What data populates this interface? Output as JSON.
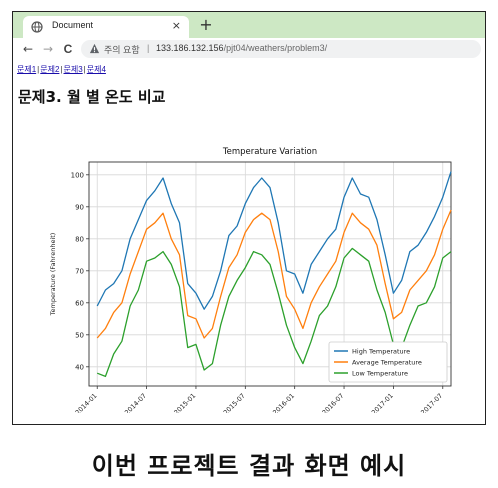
{
  "browser": {
    "tab_title": "Document",
    "tab_close": "×",
    "new_tab": "+",
    "back": "←",
    "forward": "→",
    "reload": "C",
    "security_label": "주의 요함",
    "separator": "|",
    "url_host": "133.186.132.156",
    "url_path": "/pjt04/weathers/problem3/",
    "tabstrip_color": "#cde8c4"
  },
  "page": {
    "links": [
      "문제1",
      "문제2",
      "문제3",
      "문제4"
    ],
    "link_separator": "|",
    "heading": "문제3. 월 별 온도 비교"
  },
  "caption": "이번 프로젝트 결과 화면 예시",
  "chart_data": {
    "type": "line",
    "title": "Temperature Variation",
    "xlabel": "",
    "ylabel": "Temperature (Fahrenheit)",
    "x_start": "2014-01",
    "x_step": "1 month",
    "xlim": [
      "2013-12",
      "2017-08"
    ],
    "ylim": [
      34,
      104
    ],
    "y_ticks": [
      40,
      50,
      60,
      70,
      80,
      90,
      100
    ],
    "x_ticks": [
      "2014-01",
      "2014-07",
      "2015-01",
      "2015-07",
      "2016-01",
      "2016-07",
      "2017-01",
      "2017-07"
    ],
    "grid": true,
    "legend_position": "bottom-right",
    "series": [
      {
        "name": "High Temperature",
        "color": "#1f77b4",
        "values": [
          59,
          64,
          66,
          70,
          80,
          86,
          92,
          95,
          99,
          91,
          85,
          66,
          63,
          58,
          62,
          70,
          81,
          84,
          91,
          96,
          99,
          96,
          85,
          70,
          69,
          63,
          72,
          76,
          80,
          83,
          93,
          99,
          94,
          93,
          86,
          75,
          63,
          67,
          76,
          78,
          82,
          87,
          93,
          101
        ]
      },
      {
        "name": "Average Temperature",
        "color": "#ff7f0e",
        "values": [
          49,
          52,
          57,
          60,
          69,
          76,
          83,
          85,
          88,
          80,
          75,
          56,
          55,
          49,
          52,
          62,
          71,
          75,
          82,
          86,
          88,
          86,
          76,
          62,
          58,
          52,
          60,
          65,
          69,
          73,
          82,
          88,
          85,
          83,
          78,
          66,
          55,
          57,
          64,
          67,
          70,
          75,
          83,
          89
        ]
      },
      {
        "name": "Low Temperature",
        "color": "#2ca02c",
        "values": [
          38,
          37,
          44,
          48,
          59,
          64,
          73,
          74,
          76,
          72,
          65,
          46,
          47,
          39,
          41,
          53,
          62,
          67,
          71,
          76,
          75,
          72,
          63,
          53,
          46,
          41,
          48,
          56,
          59,
          65,
          74,
          77,
          75,
          73,
          64,
          57,
          47,
          46,
          53,
          59,
          60,
          65,
          74,
          76
        ]
      }
    ]
  }
}
